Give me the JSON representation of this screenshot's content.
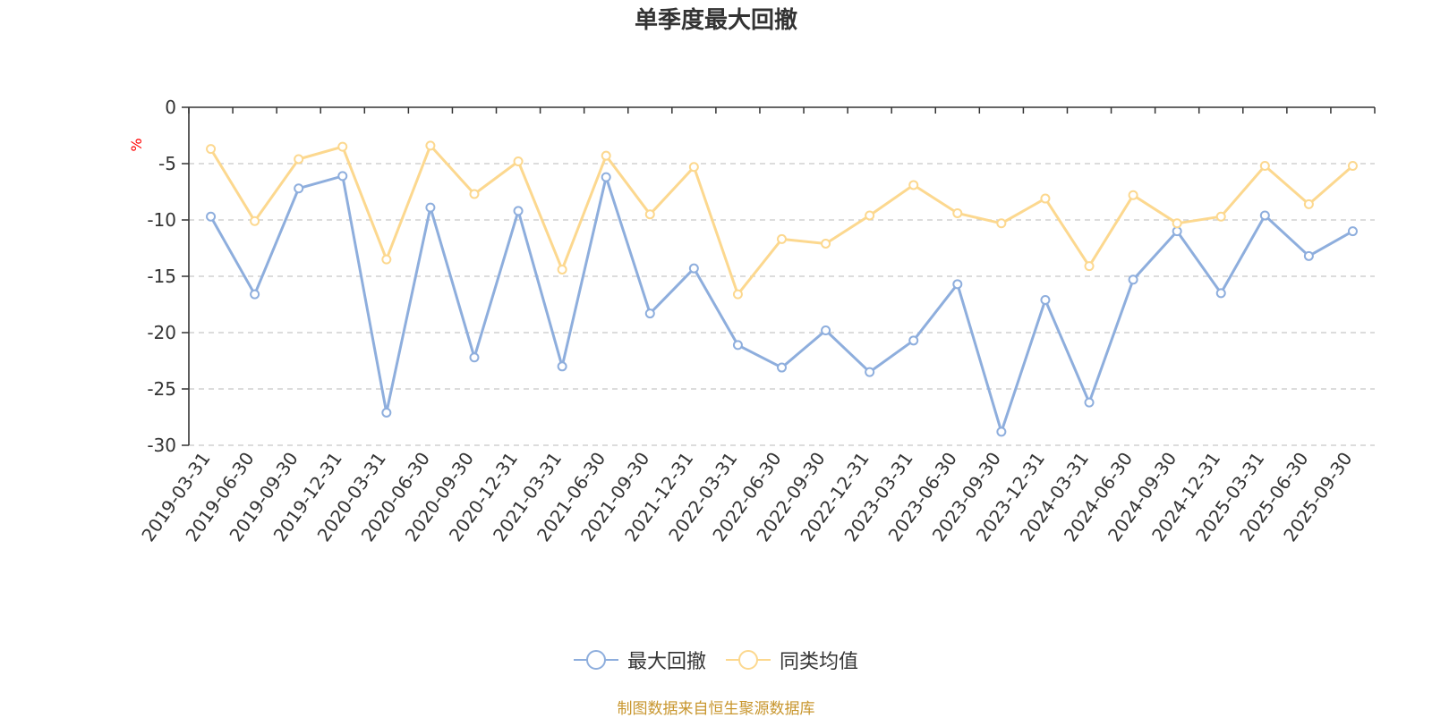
{
  "chart_data": {
    "type": "line",
    "title": "单季度最大回撤",
    "ylabel": "%",
    "ylim": [
      -30,
      0
    ],
    "yticks": [
      0,
      -5,
      -10,
      -15,
      -20,
      -25,
      -30
    ],
    "grid": true,
    "legend_position": "bottom-center",
    "categories": [
      "2019-03-31",
      "2019-06-30",
      "2019-09-30",
      "2019-12-31",
      "2020-03-31",
      "2020-06-30",
      "2020-09-30",
      "2020-12-31",
      "2021-03-31",
      "2021-06-30",
      "2021-09-30",
      "2021-12-31",
      "2022-03-31",
      "2022-06-30",
      "2022-09-30",
      "2022-12-31",
      "2023-03-31",
      "2023-06-30",
      "2023-09-30",
      "2023-12-31",
      "2024-03-31",
      "2024-06-30",
      "2024-09-30",
      "2024-12-31",
      "2025-03-31",
      "2025-06-30",
      "2025-09-30"
    ],
    "series": [
      {
        "name": "最大回撤",
        "color": "#8eaedd",
        "values": [
          -9.7,
          -16.6,
          -7.2,
          -6.1,
          -27.1,
          -8.9,
          -22.2,
          -9.2,
          -23.0,
          -6.2,
          -18.3,
          -14.3,
          -21.1,
          -23.1,
          -19.8,
          -23.5,
          -20.7,
          -15.7,
          -28.8,
          -17.1,
          -26.2,
          -15.3,
          -11.0,
          -16.5,
          -9.6,
          -13.2,
          -11.0
        ]
      },
      {
        "name": "同类均值",
        "color": "#fcd88f",
        "values": [
          -3.7,
          -10.1,
          -4.6,
          -3.5,
          -13.5,
          -3.4,
          -7.7,
          -4.8,
          -14.4,
          -4.3,
          -9.5,
          -5.3,
          -16.6,
          -11.7,
          -12.1,
          -9.6,
          -6.9,
          -9.4,
          -10.3,
          -8.1,
          -14.1,
          -7.8,
          -10.3,
          -9.7,
          -5.2,
          -8.6,
          -5.2
        ]
      }
    ]
  },
  "footer": {
    "source_text": "制图数据来自恒生聚源数据库",
    "source_color": "#c8962e"
  },
  "style": {
    "axis_color": "#333333",
    "grid_color": "#c8c8c8",
    "ylabel_color": "#ff0000"
  }
}
